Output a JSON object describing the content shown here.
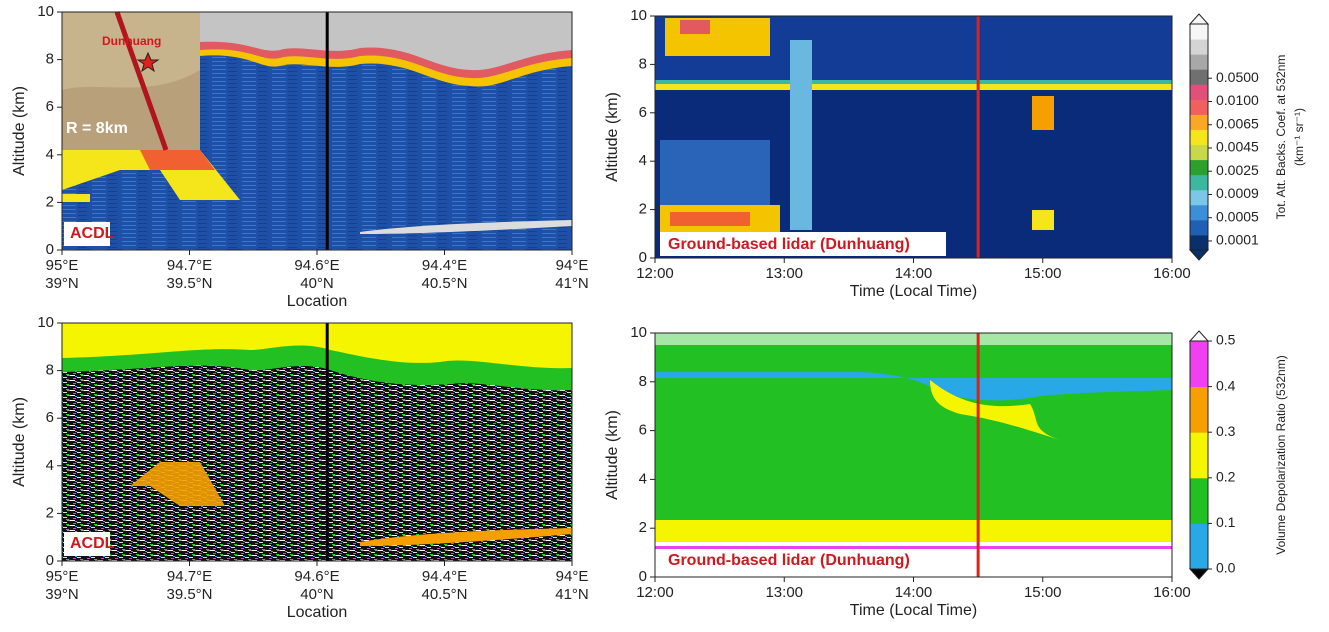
{
  "chart_data": [
    {
      "type": "heatmap",
      "xlabel": "Location",
      "ylabel": "Altitude (km)",
      "xlim": [
        39,
        41
      ],
      "xticks": [
        {
          "value": 39,
          "label": [
            "95°E",
            "39°N"
          ]
        },
        {
          "value": 39.5,
          "label": [
            "94.7°E",
            "39.5°N"
          ]
        },
        {
          "value": 40,
          "label": [
            "94.6°E",
            "40°N"
          ]
        },
        {
          "value": 40.5,
          "label": [
            "94.4°E",
            "40.5°N"
          ]
        },
        {
          "value": 41,
          "label": [
            "94°E",
            "41°N"
          ]
        }
      ],
      "ylim": [
        0,
        10
      ],
      "yticks": [
        0,
        2,
        4,
        6,
        8,
        10
      ],
      "vline_x": 40.04,
      "vline_color": "#000000",
      "annotations": [
        "ACDL",
        "Dunhuang",
        "R = 8km"
      ]
    },
    {
      "type": "heatmap",
      "xlabel": "Time (Local Time)",
      "ylabel": "Altitude (km)",
      "xlim": [
        12,
        16
      ],
      "xticks": [
        {
          "value": 12,
          "label": "12:00"
        },
        {
          "value": 13,
          "label": "13:00"
        },
        {
          "value": 14,
          "label": "14:00"
        },
        {
          "value": 15,
          "label": "15:00"
        },
        {
          "value": 16,
          "label": "16:00"
        }
      ],
      "ylim": [
        0,
        10
      ],
      "yticks": [
        0,
        2,
        4,
        6,
        8,
        10
      ],
      "vline_x": 14.5,
      "vline_color": "#e0201a",
      "annotations": [
        "Ground-based lidar (Dunhuang)"
      ],
      "colorbar": {
        "label": [
          "Tot. Att. Backs. Coef. at 532nm",
          "(km⁻¹ sr⁻¹)"
        ],
        "ticks": [
          0.0001,
          0.0005,
          0.0009,
          0.0025,
          0.0045,
          0.0065,
          {
            "value": 0.01,
            "label": "0.0100"
          },
          {
            "value": 0.05,
            "label": "0.0500"
          }
        ],
        "colors": [
          "#08306b",
          "#1f5fb4",
          "#3a8fd8",
          "#7cc6e8",
          "#3cb8a0",
          "#2ca02c",
          "#c8d84a",
          "#f5e51b",
          "#f9a825",
          "#f06060",
          "#e0507a",
          "#707070",
          "#a8a8a8",
          "#d4d4d4",
          "#f6f6f6"
        ]
      }
    },
    {
      "type": "heatmap",
      "xlabel": "Location",
      "ylabel": "Altitude (km)",
      "xlim": [
        39,
        41
      ],
      "xticks": [
        {
          "value": 39,
          "label": [
            "95°E",
            "39°N"
          ]
        },
        {
          "value": 39.5,
          "label": [
            "94.7°E",
            "39.5°N"
          ]
        },
        {
          "value": 40,
          "label": [
            "94.6°E",
            "40°N"
          ]
        },
        {
          "value": 40.5,
          "label": [
            "94.4°E",
            "40.5°N"
          ]
        },
        {
          "value": 41,
          "label": [
            "94°E",
            "41°N"
          ]
        }
      ],
      "ylim": [
        0,
        10
      ],
      "yticks": [
        0,
        2,
        4,
        6,
        8,
        10
      ],
      "vline_x": 40.04,
      "vline_color": "#000000",
      "annotations": [
        "ACDL"
      ]
    },
    {
      "type": "heatmap",
      "xlabel": "Time (Local Time)",
      "ylabel": "Altitude (km)",
      "xlim": [
        12,
        16
      ],
      "xticks": [
        {
          "value": 12,
          "label": "12:00"
        },
        {
          "value": 13,
          "label": "13:00"
        },
        {
          "value": 14,
          "label": "14:00"
        },
        {
          "value": 15,
          "label": "15:00"
        },
        {
          "value": 16,
          "label": "16:00"
        }
      ],
      "ylim": [
        0,
        10
      ],
      "yticks": [
        0,
        2,
        4,
        6,
        8,
        10
      ],
      "vline_x": 14.5,
      "vline_color": "#e0201a",
      "annotations": [
        "Ground-based lidar (Dunhuang)"
      ],
      "colorbar": {
        "label": [
          "Volume Depolarization Ratio (532nm)"
        ],
        "vlim": [
          0,
          0.5
        ],
        "ticks": [
          {
            "value": 0,
            "label": "0.0"
          },
          0.1,
          0.2,
          0.3,
          0.4,
          0.5
        ],
        "colors": [
          "#29a8e8",
          "#22c022",
          "#f5f500",
          "#f5a000",
          "#f040f0"
        ]
      }
    }
  ]
}
